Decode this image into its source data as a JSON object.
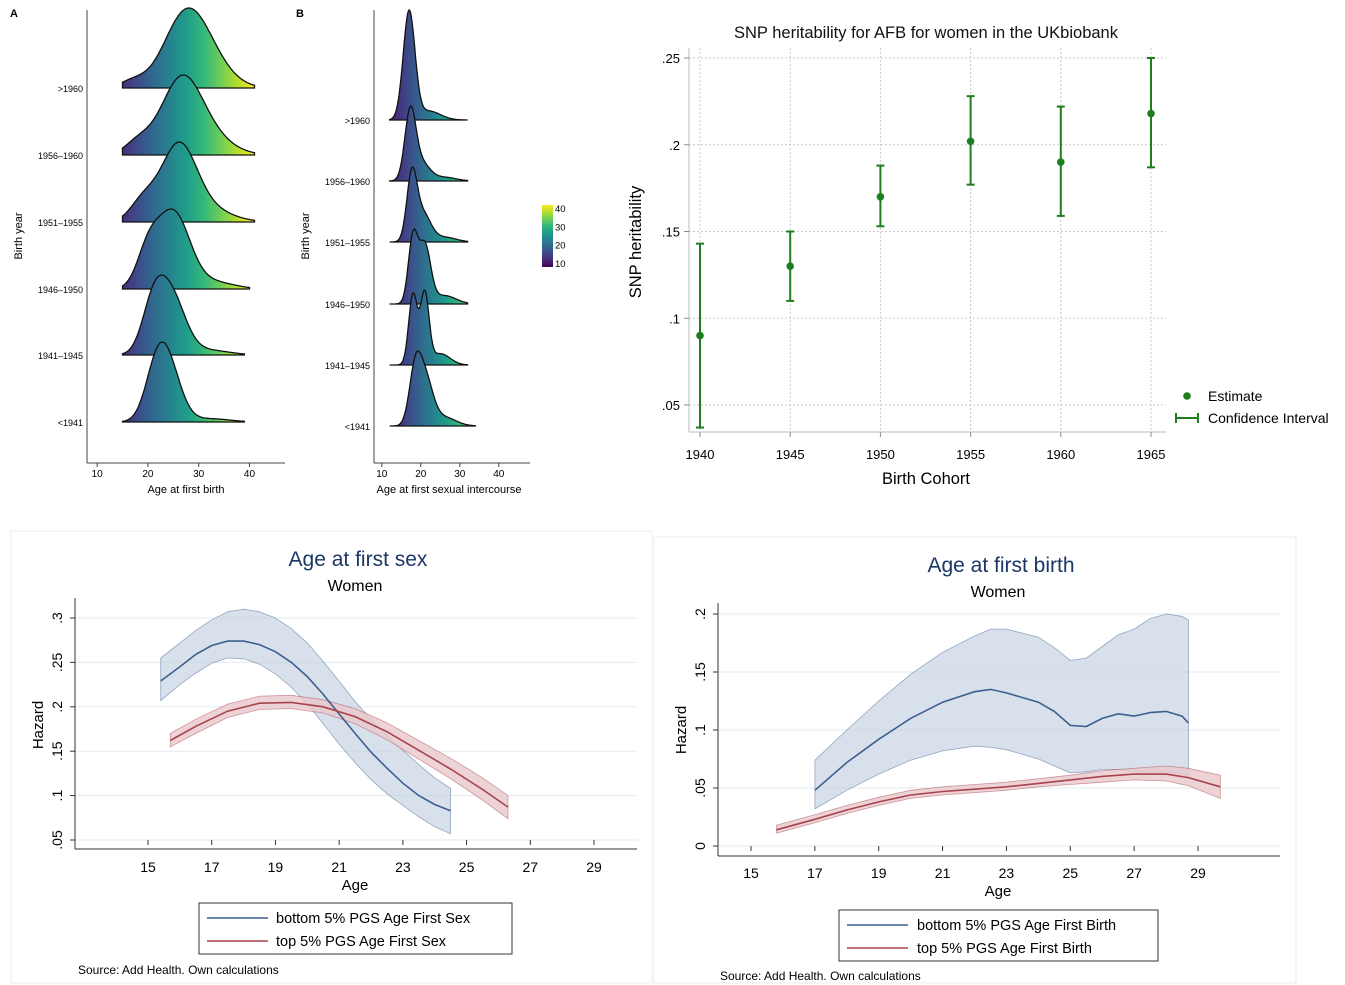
{
  "chart_data": [
    {
      "id": "A",
      "type": "ridgeline",
      "panel_label": "A",
      "xlabel": "Age at first birth",
      "ylabel": "Birth year",
      "xlim": [
        8,
        47
      ],
      "xticks": [
        10,
        20,
        30,
        40
      ],
      "groups": [
        ">1960",
        "1956–1960",
        "1951–1955",
        "1946–1950",
        "1941–1945",
        "<1941"
      ],
      "ranges": [
        [
          15,
          41
        ],
        [
          15,
          41
        ],
        [
          15,
          41
        ],
        [
          15,
          40
        ],
        [
          15,
          39
        ],
        [
          15,
          39
        ]
      ]
    },
    {
      "id": "B",
      "type": "ridgeline",
      "panel_label": "B",
      "xlabel": "Age at first sexual intercourse",
      "ylabel": "Birth year",
      "xlim": [
        8,
        48
      ],
      "xticks": [
        10,
        20,
        30,
        40
      ],
      "groups": [
        ">1960",
        "1956–1960",
        "1951–1955",
        "1946–1950",
        "1941–1945",
        "<1941"
      ],
      "ranges": [
        [
          12,
          32
        ],
        [
          12,
          32
        ],
        [
          12,
          32
        ],
        [
          12,
          32
        ],
        [
          12,
          32
        ],
        [
          12,
          34
        ]
      ],
      "colorbar": {
        "ticks": [
          10,
          20,
          30,
          40
        ],
        "range": [
          8,
          42
        ]
      }
    },
    {
      "id": "C",
      "type": "errorbar",
      "title": "SNP heritability for AFB for women in the UKbiobank",
      "xlabel": "Birth Cohort",
      "ylabel": "SNP heritability",
      "xlim": [
        1939.8,
        1965.2
      ],
      "ylim": [
        0.035,
        0.255
      ],
      "xticks": [
        1940,
        1945,
        1950,
        1955,
        1960,
        1965
      ],
      "yticks": [
        0.05,
        0.1,
        0.15,
        0.2,
        0.25
      ],
      "ytick_labels": [
        ".05",
        ".1",
        ".15",
        ".2",
        ".25"
      ],
      "x": [
        1940,
        1945,
        1950,
        1955,
        1960,
        1965
      ],
      "estimate": [
        0.09,
        0.13,
        0.17,
        0.202,
        0.19,
        0.218
      ],
      "ci_low": [
        0.037,
        0.11,
        0.153,
        0.177,
        0.159,
        0.187
      ],
      "ci_high": [
        0.143,
        0.15,
        0.188,
        0.228,
        0.222,
        0.25
      ],
      "legend": [
        "Estimate",
        "Confidence Interval"
      ],
      "color": "#1e7d1e"
    },
    {
      "id": "D",
      "type": "line_ci",
      "title": "Age at first sex",
      "subtitle": "Women",
      "xlabel": "Age",
      "ylabel": "Hazard",
      "xlim": [
        13,
        31.5
      ],
      "ylim": [
        0.05,
        0.32
      ],
      "xticks": [
        15,
        17,
        19,
        21,
        23,
        25,
        27,
        29
      ],
      "yticks": [
        0.05,
        0.1,
        0.15,
        0.2,
        0.25,
        0.3
      ],
      "ytick_labels": [
        ".05",
        ".1",
        ".15",
        ".2",
        ".25",
        ".3"
      ],
      "series": [
        {
          "name": "bottom 5% PGS Age First Sex",
          "color": "#3d5f8f",
          "band": "rgba(190,205,222,0.6)",
          "x": [
            15.4,
            16,
            16.5,
            17,
            17.5,
            18,
            18.5,
            19,
            19.5,
            20,
            20.5,
            21,
            21.5,
            22,
            22.5,
            23,
            23.5,
            24,
            24.5
          ],
          "y": [
            0.229,
            0.245,
            0.259,
            0.269,
            0.274,
            0.274,
            0.27,
            0.262,
            0.25,
            0.234,
            0.214,
            0.192,
            0.17,
            0.149,
            0.131,
            0.114,
            0.1,
            0.09,
            0.083
          ],
          "lo": [
            0.207,
            0.225,
            0.238,
            0.249,
            0.255,
            0.254,
            0.248,
            0.237,
            0.222,
            0.203,
            0.181,
            0.158,
            0.137,
            0.118,
            0.102,
            0.089,
            0.076,
            0.065,
            0.057
          ],
          "hi": [
            0.255,
            0.272,
            0.286,
            0.298,
            0.307,
            0.31,
            0.307,
            0.3,
            0.288,
            0.272,
            0.251,
            0.229,
            0.206,
            0.186,
            0.168,
            0.151,
            0.135,
            0.12,
            0.108
          ]
        },
        {
          "name": "top 5% PGS Age First Sex",
          "color": "#a8434b",
          "band": "rgba(232,200,204,0.8)",
          "x": [
            15.7,
            16.5,
            17.5,
            18.5,
            19.5,
            20.5,
            21.5,
            22.5,
            23.5,
            24.5,
            25.5,
            26.3
          ],
          "y": [
            0.162,
            0.178,
            0.195,
            0.204,
            0.205,
            0.2,
            0.189,
            0.172,
            0.151,
            0.13,
            0.107,
            0.087
          ],
          "lo": [
            0.155,
            0.17,
            0.188,
            0.197,
            0.198,
            0.193,
            0.181,
            0.163,
            0.141,
            0.119,
            0.095,
            0.074
          ],
          "hi": [
            0.17,
            0.186,
            0.203,
            0.212,
            0.213,
            0.208,
            0.198,
            0.182,
            0.162,
            0.142,
            0.12,
            0.1
          ]
        }
      ],
      "source": "Source: Add Health.  Own calculations"
    },
    {
      "id": "E",
      "type": "line_ci",
      "title": "Age at first birth",
      "subtitle": "Women",
      "xlabel": "Age",
      "ylabel": "Hazard",
      "xlim": [
        13.8,
        31.5
      ],
      "ylim": [
        0,
        0.205
      ],
      "xticks": [
        15,
        17,
        19,
        21,
        23,
        25,
        27,
        29
      ],
      "yticks": [
        0,
        0.05,
        0.1,
        0.15,
        0.2
      ],
      "ytick_labels": [
        "0",
        ".05",
        ".1",
        ".15",
        ".2"
      ],
      "series": [
        {
          "name": "bottom 5% PGS Age First Birth",
          "color": "#3d5f8f",
          "band": "rgba(190,205,222,0.6)",
          "x": [
            17,
            18,
            19,
            20,
            21,
            22,
            22.5,
            23,
            24,
            24.5,
            25,
            25.5,
            26,
            26.5,
            27,
            27.5,
            28,
            28.5,
            28.7
          ],
          "y": [
            0.048,
            0.072,
            0.092,
            0.11,
            0.124,
            0.133,
            0.135,
            0.132,
            0.124,
            0.116,
            0.104,
            0.103,
            0.11,
            0.114,
            0.112,
            0.115,
            0.116,
            0.112,
            0.106
          ],
          "lo": [
            0.032,
            0.048,
            0.062,
            0.074,
            0.082,
            0.086,
            0.085,
            0.083,
            0.075,
            0.069,
            0.063,
            0.064,
            0.066,
            0.066,
            0.064,
            0.064,
            0.064,
            0.062,
            0.06
          ],
          "hi": [
            0.074,
            0.1,
            0.125,
            0.148,
            0.167,
            0.181,
            0.187,
            0.187,
            0.18,
            0.171,
            0.16,
            0.162,
            0.172,
            0.182,
            0.187,
            0.196,
            0.2,
            0.198,
            0.195
          ]
        },
        {
          "name": "top 5% PGS Age First Birth",
          "color": "#a8434b",
          "band": "rgba(232,200,204,0.8)",
          "x": [
            15.8,
            17,
            18,
            19,
            20,
            21,
            22,
            23,
            24,
            25,
            26,
            27,
            28,
            28.7,
            29.7
          ],
          "y": [
            0.014,
            0.023,
            0.031,
            0.038,
            0.044,
            0.047,
            0.049,
            0.051,
            0.054,
            0.057,
            0.06,
            0.062,
            0.062,
            0.059,
            0.051
          ],
          "lo": [
            0.011,
            0.02,
            0.028,
            0.035,
            0.041,
            0.044,
            0.046,
            0.048,
            0.051,
            0.053,
            0.055,
            0.057,
            0.056,
            0.052,
            0.041
          ],
          "hi": [
            0.018,
            0.027,
            0.035,
            0.042,
            0.048,
            0.051,
            0.053,
            0.055,
            0.058,
            0.061,
            0.065,
            0.067,
            0.069,
            0.067,
            0.061
          ]
        }
      ],
      "source": "Source: Add Health.  Own calculations"
    }
  ]
}
